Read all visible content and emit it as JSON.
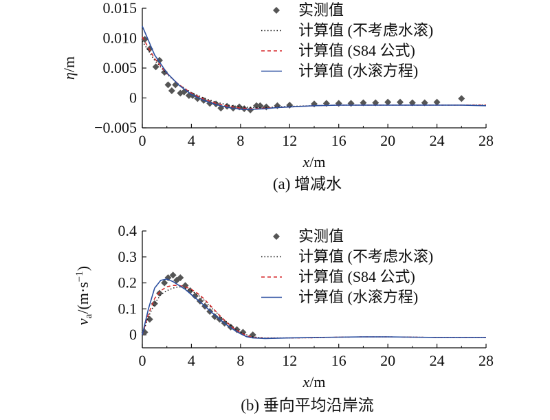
{
  "chart_data": [
    {
      "type": "line",
      "caption": "(a) 增减水",
      "ylabel_sym": "η",
      "ylabel_unit": "/m",
      "xlabel_sym": "x",
      "xlabel_unit": "/m",
      "xlim": [
        0,
        28
      ],
      "ylim": [
        -0.005,
        0.015
      ],
      "xticks": [
        0,
        4,
        8,
        12,
        16,
        20,
        24,
        28
      ],
      "yticks": [
        -0.005,
        0,
        0.005,
        0.01,
        0.015
      ],
      "ytick_labels": [
        "−0.005",
        "0",
        "0.005",
        "0.010",
        "0.015"
      ],
      "legend": [
        "实测值",
        "计算值 (不考虑水滚)",
        "计算值 (S84 公式)",
        "计算值 (水滚方程)"
      ],
      "series": [
        {
          "name": "实测值",
          "style": "marker",
          "color": "#555555",
          "x": [
            0.2,
            0.6,
            1.1,
            1.4,
            1.8,
            2.1,
            2.4,
            2.7,
            3.1,
            3.4,
            3.8,
            4.1,
            4.5,
            5.0,
            5.5,
            6.0,
            6.4,
            6.9,
            7.4,
            7.9,
            8.3,
            8.8,
            9.3,
            9.6,
            10.1,
            11.0,
            12.0,
            14.0,
            15.0,
            16.0,
            17.0,
            18.0,
            19.0,
            20.0,
            21.0,
            22.0,
            23.0,
            24.0,
            26.0
          ],
          "y": [
            0.0098,
            0.0082,
            0.0052,
            0.0063,
            0.0043,
            0.0022,
            0.0012,
            0.0022,
            0.0008,
            0.001,
            0.0004,
            0.0004,
            -0.0001,
            -0.0004,
            -0.0009,
            -0.001,
            -0.0017,
            -0.0014,
            -0.0017,
            -0.0015,
            -0.0018,
            -0.002,
            -0.0013,
            -0.0013,
            -0.0015,
            -0.0013,
            -0.0012,
            -0.001,
            -0.0009,
            -0.0009,
            -0.0009,
            -0.0008,
            -0.0008,
            -0.0007,
            -0.0007,
            -0.0008,
            -0.0008,
            -0.0007,
            -0.0001
          ]
        },
        {
          "name": "计算值 (不考虑水滚)",
          "style": "dotted",
          "color": "#111111",
          "x": [
            0,
            1,
            2,
            3,
            4,
            5,
            6,
            7,
            8,
            9,
            10,
            11,
            12,
            14,
            16,
            18,
            20,
            22,
            24,
            26,
            28
          ],
          "y": [
            0.0095,
            0.0063,
            0.004,
            0.0022,
            0.0009,
            0.0,
            -0.0007,
            -0.0012,
            -0.0015,
            -0.0016,
            -0.0016,
            -0.0015,
            -0.0014,
            -0.0013,
            -0.0012,
            -0.0012,
            -0.0012,
            -0.0012,
            -0.0012,
            -0.0012,
            -0.0012
          ]
        },
        {
          "name": "计算值 (S84 公式)",
          "style": "dashed",
          "color": "#d62728",
          "x": [
            0,
            1,
            2,
            3,
            4,
            5,
            6,
            7,
            8,
            9,
            10,
            11,
            12,
            14,
            16,
            18,
            20,
            22,
            24,
            26,
            28
          ],
          "y": [
            0.0102,
            0.0066,
            0.0041,
            0.0022,
            0.0008,
            -0.0002,
            -0.0009,
            -0.0014,
            -0.0017,
            -0.0018,
            -0.0017,
            -0.0016,
            -0.0015,
            -0.0013,
            -0.0012,
            -0.0012,
            -0.0012,
            -0.0012,
            -0.0012,
            -0.0012,
            -0.0012
          ]
        },
        {
          "name": "计算值 (水滚方程)",
          "style": "solid",
          "color": "#2b4fa0",
          "x": [
            0,
            1,
            2,
            3,
            4,
            5,
            6,
            7,
            8,
            9,
            10,
            11,
            12,
            14,
            16,
            18,
            20,
            22,
            24,
            26,
            28
          ],
          "y": [
            0.012,
            0.0072,
            0.0042,
            0.0021,
            0.0006,
            -0.0004,
            -0.0011,
            -0.0016,
            -0.0019,
            -0.0019,
            -0.0018,
            -0.0016,
            -0.0015,
            -0.0013,
            -0.0012,
            -0.0012,
            -0.0012,
            -0.0012,
            -0.0012,
            -0.0012,
            -0.0013
          ]
        }
      ]
    },
    {
      "type": "line",
      "caption": "(b) 垂向平均沿岸流",
      "ylabel_sym": "v",
      "ylabel_sub": "a",
      "ylabel_unit": "/(m·s",
      "ylabel_sup": "−1",
      "ylabel_close": ")",
      "xlabel_sym": "x",
      "xlabel_unit": "/m",
      "xlim": [
        0,
        28
      ],
      "ylim": [
        -0.05,
        0.4
      ],
      "xticks": [
        0,
        4,
        8,
        12,
        16,
        20,
        24,
        28
      ],
      "yticks": [
        0,
        0.1,
        0.2,
        0.3,
        0.4
      ],
      "ytick_labels": [
        "0",
        "0.1",
        "0.2",
        "0.3",
        "0.4"
      ],
      "legend": [
        "实测值",
        "计算值 (不考虑水滚)",
        "计算值 (S84 公式)",
        "计算值 (水滚方程)"
      ],
      "series": [
        {
          "name": "实测值",
          "style": "marker",
          "color": "#555555",
          "x": [
            0.2,
            0.6,
            1.0,
            1.4,
            1.8,
            2.1,
            2.5,
            2.8,
            3.1,
            3.5,
            3.9,
            4.3,
            4.7,
            5.1,
            5.5,
            5.9,
            6.3,
            6.7,
            7.2,
            7.7,
            8.2,
            9.0
          ],
          "y": [
            0.01,
            0.06,
            0.12,
            0.16,
            0.2,
            0.22,
            0.23,
            0.21,
            0.22,
            0.19,
            0.17,
            0.15,
            0.13,
            0.11,
            0.09,
            0.07,
            0.06,
            0.045,
            0.03,
            0.02,
            0.01,
            0.0
          ]
        },
        {
          "name": "计算值 (不考虑水滚)",
          "style": "dotted",
          "color": "#111111",
          "x": [
            0,
            0.5,
            1,
            1.5,
            2,
            2.5,
            3,
            3.5,
            4,
            4.5,
            5,
            5.5,
            6,
            6.5,
            7,
            7.5,
            8,
            8.5,
            9,
            10,
            12,
            14,
            16,
            18,
            20,
            22,
            24,
            26,
            28
          ],
          "y": [
            0.0,
            0.07,
            0.12,
            0.155,
            0.17,
            0.18,
            0.185,
            0.18,
            0.17,
            0.155,
            0.135,
            0.11,
            0.088,
            0.065,
            0.045,
            0.025,
            0.01,
            0.0,
            -0.008,
            -0.012,
            -0.012,
            -0.011,
            -0.009,
            -0.008,
            -0.008,
            -0.009,
            -0.01,
            -0.01,
            -0.01
          ]
        },
        {
          "name": "计算值 (S84 公式)",
          "style": "dashed",
          "color": "#d62728",
          "x": [
            0,
            0.5,
            1,
            1.5,
            2,
            2.5,
            3,
            3.5,
            4,
            4.5,
            5,
            5.5,
            6,
            6.5,
            7,
            7.5,
            8,
            8.5,
            9,
            10,
            12,
            14,
            16,
            18,
            20,
            22,
            24,
            26,
            28
          ],
          "y": [
            0.0,
            0.08,
            0.14,
            0.17,
            0.185,
            0.19,
            0.19,
            0.185,
            0.175,
            0.16,
            0.14,
            0.115,
            0.09,
            0.065,
            0.043,
            0.023,
            0.008,
            -0.003,
            -0.01,
            -0.013,
            -0.012,
            -0.011,
            -0.009,
            -0.008,
            -0.008,
            -0.009,
            -0.01,
            -0.01,
            -0.01
          ]
        },
        {
          "name": "计算值 (水滚方程)",
          "style": "solid",
          "color": "#2b4fa0",
          "x": [
            0,
            0.5,
            1,
            1.5,
            2,
            2.5,
            3,
            3.5,
            4,
            4.5,
            5,
            5.5,
            6,
            6.5,
            7,
            7.5,
            8,
            8.5,
            9,
            10,
            12,
            14,
            16,
            18,
            20,
            22,
            24,
            26,
            28
          ],
          "y": [
            0.0,
            0.1,
            0.18,
            0.21,
            0.215,
            0.205,
            0.19,
            0.175,
            0.155,
            0.135,
            0.115,
            0.093,
            0.072,
            0.052,
            0.034,
            0.018,
            0.004,
            -0.007,
            -0.012,
            -0.014,
            -0.012,
            -0.01,
            -0.009,
            -0.008,
            -0.008,
            -0.009,
            -0.01,
            -0.01,
            -0.01
          ]
        }
      ]
    }
  ]
}
